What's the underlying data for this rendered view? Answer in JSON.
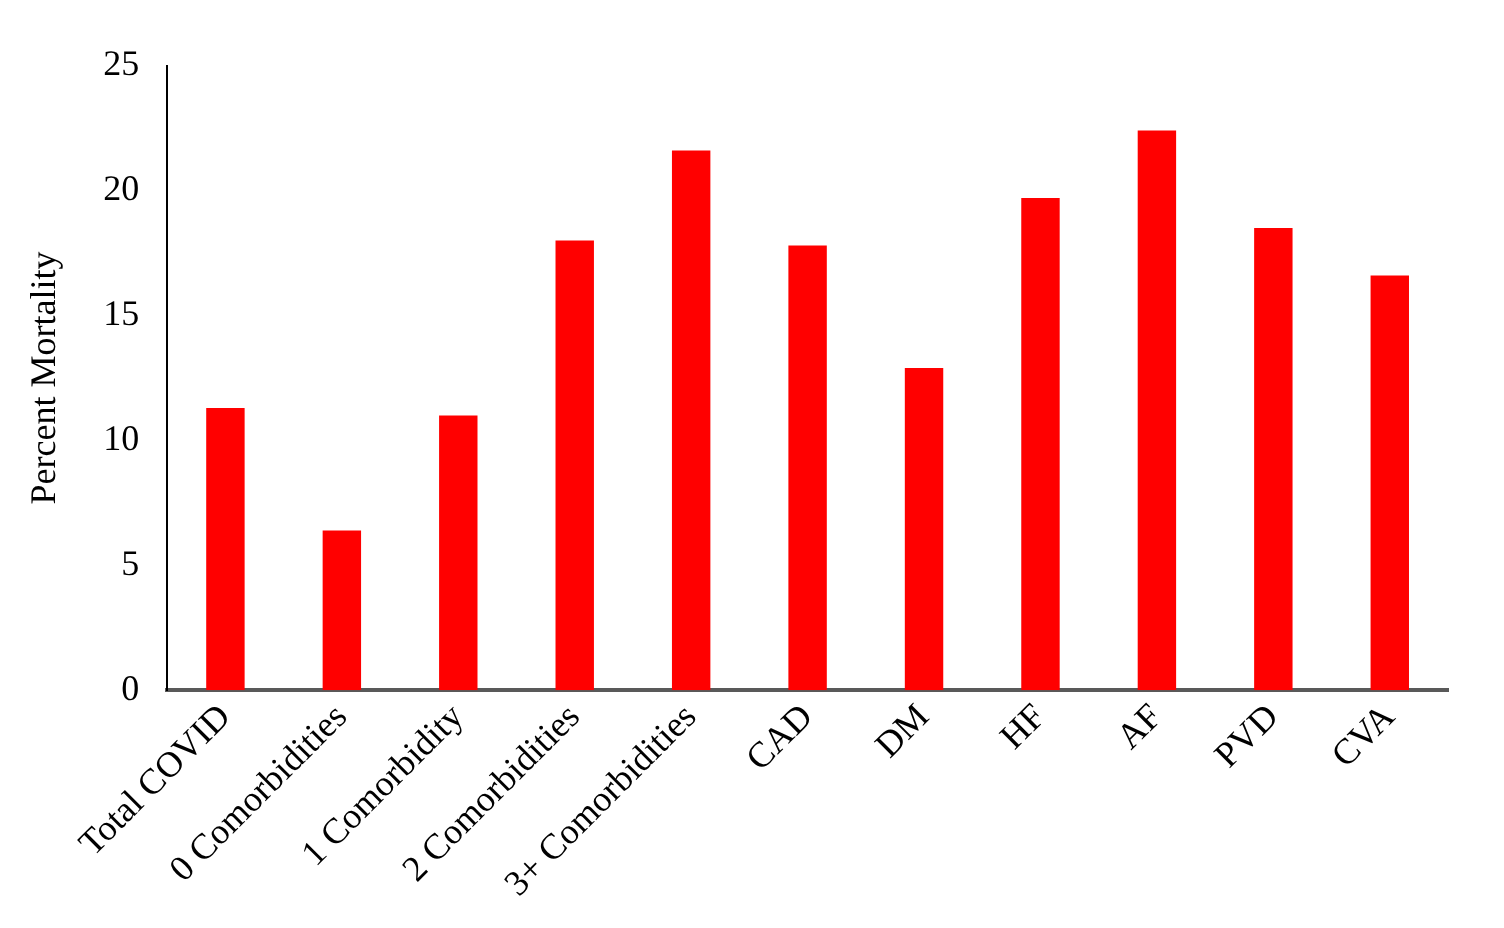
{
  "chart_data": {
    "type": "bar",
    "ylabel": "Percent Mortality",
    "categories": [
      "Total COVID",
      "0 Comorbidities",
      "1 Comorbidity",
      "2 Comorbidities",
      "3+ Comorbidities",
      "CAD",
      "DM",
      "HF",
      "AF",
      "PVD",
      "CVA"
    ],
    "values": [
      11.3,
      6.4,
      11.0,
      18.0,
      21.6,
      17.8,
      12.9,
      19.7,
      22.4,
      18.5,
      16.6
    ],
    "color": "#ff0000",
    "ylim": [
      0,
      25
    ],
    "yticks": [
      0,
      5,
      10,
      15,
      20,
      25
    ],
    "grid": false,
    "legend": false
  }
}
